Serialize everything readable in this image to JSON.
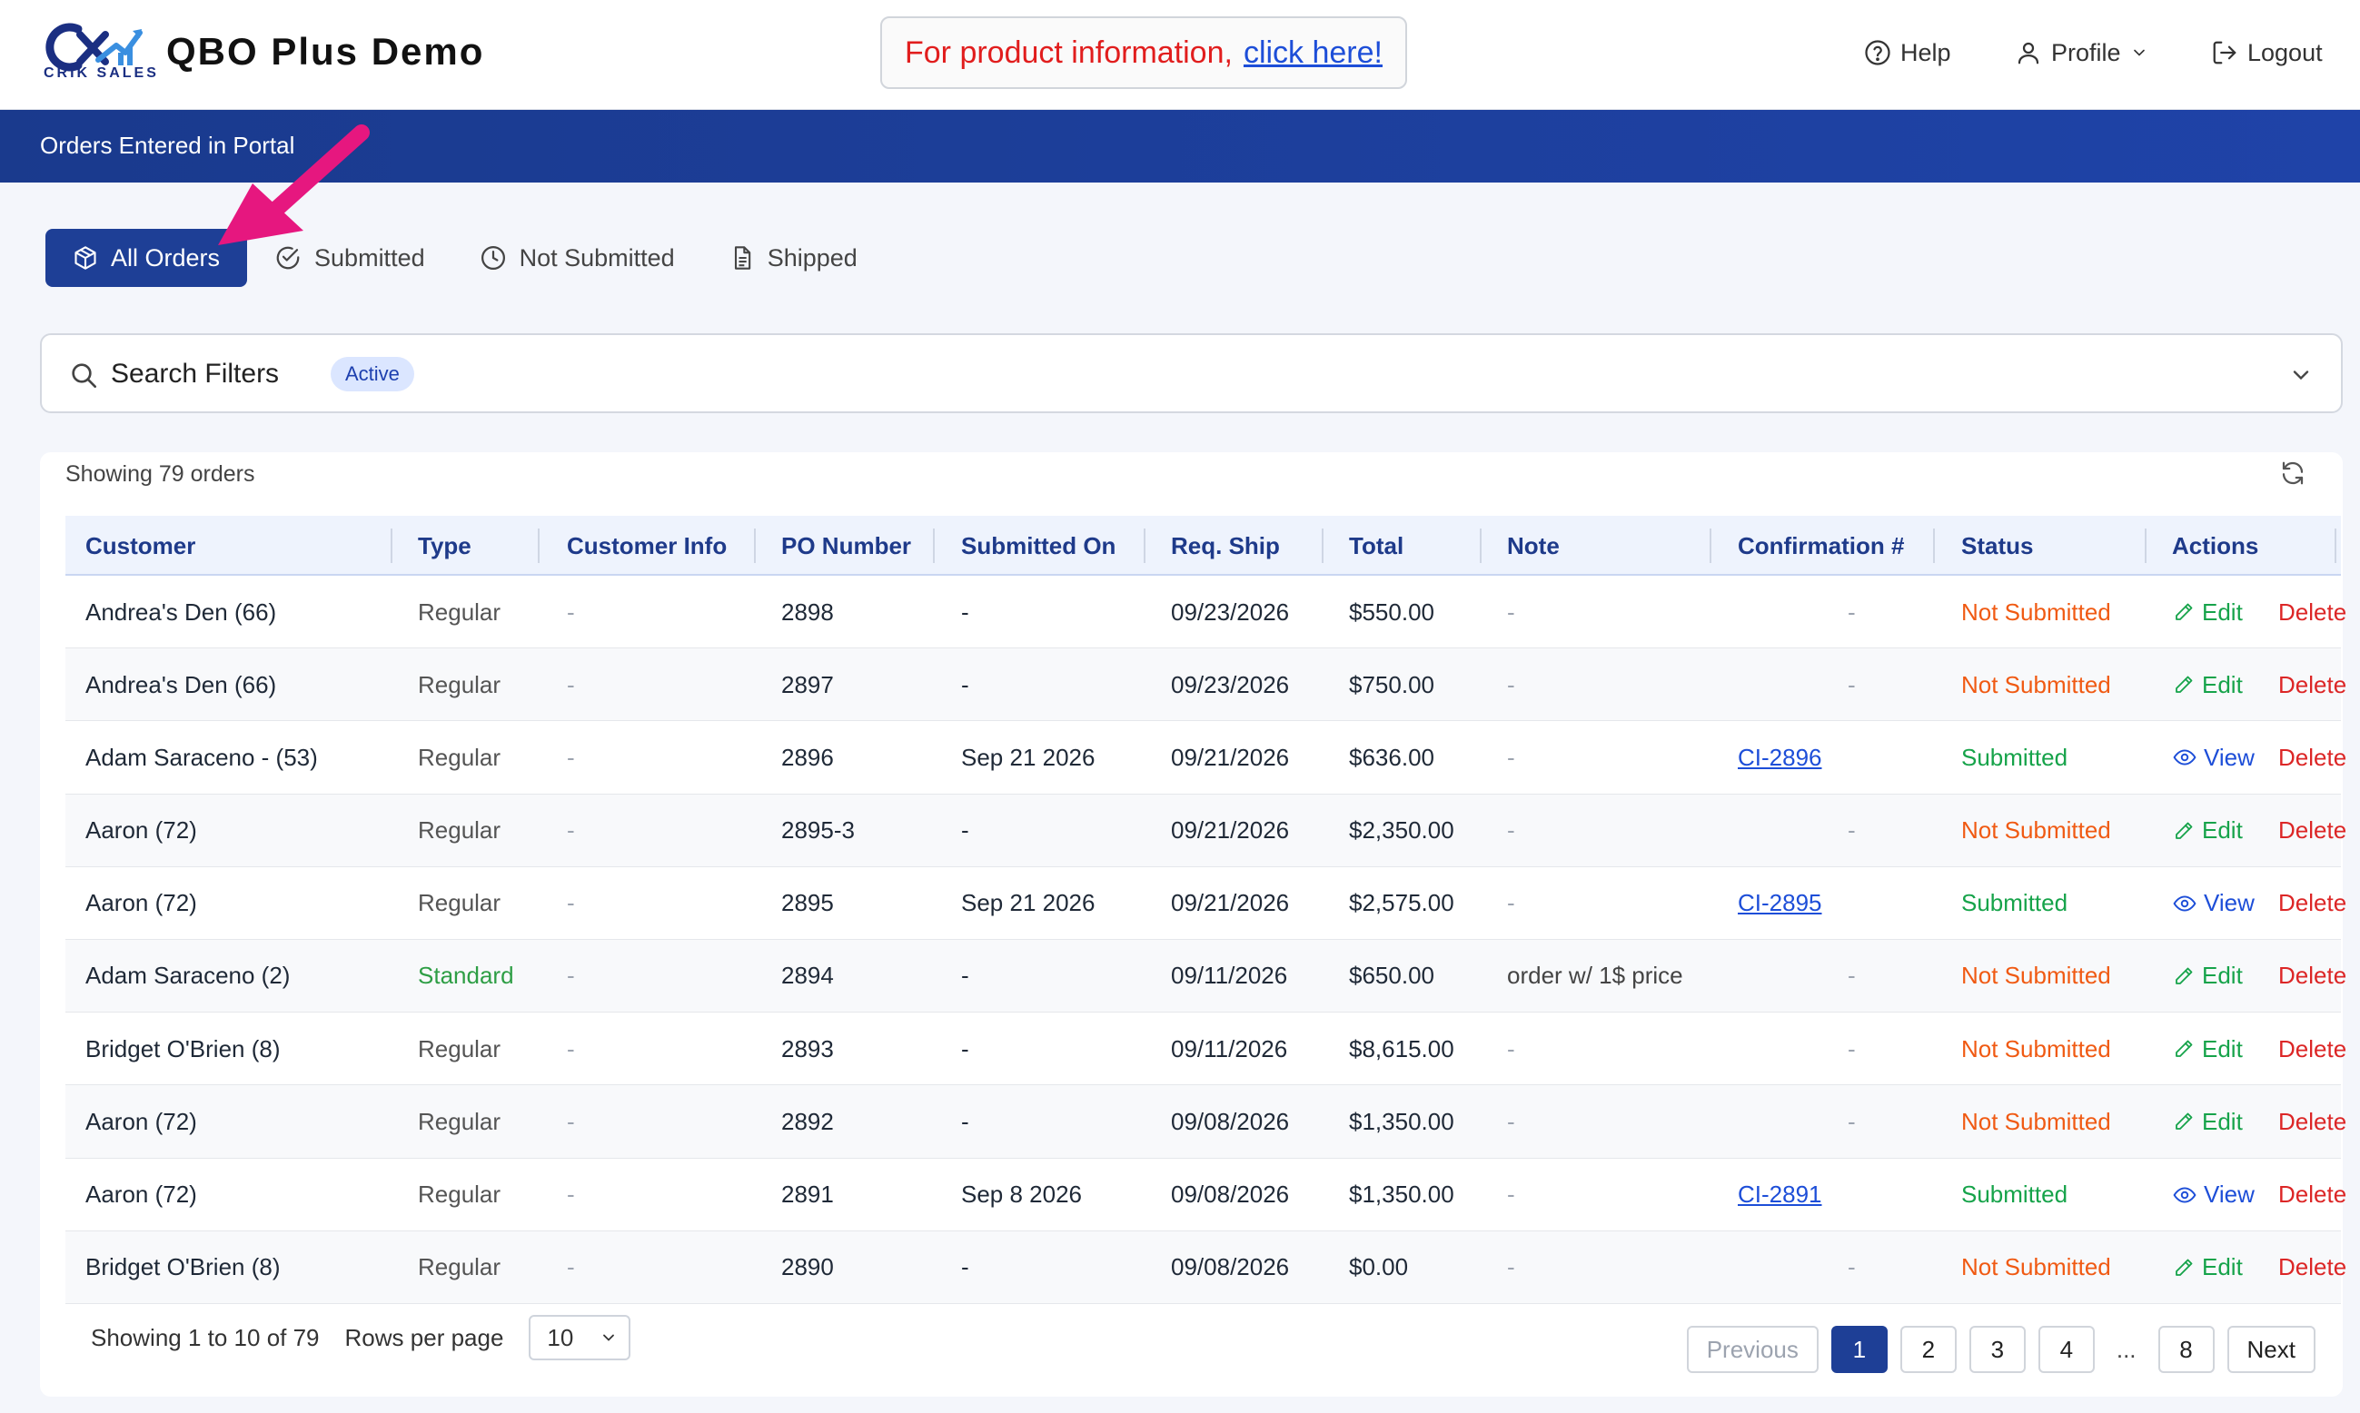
{
  "header": {
    "logo_text": "CRIK SALES",
    "app_title": "QBO Plus Demo",
    "promo_text": "For product information,",
    "promo_link": "click here!",
    "nav": {
      "help": "Help",
      "profile": "Profile",
      "logout": "Logout"
    }
  },
  "banner": {
    "title": "Orders Entered in Portal"
  },
  "tabs": [
    {
      "label": "All Orders",
      "icon": "box-icon",
      "active": true
    },
    {
      "label": "Submitted",
      "icon": "check-circle-icon",
      "active": false
    },
    {
      "label": "Not Submitted",
      "icon": "clock-icon",
      "active": false
    },
    {
      "label": "Shipped",
      "icon": "document-icon",
      "active": false
    }
  ],
  "filters": {
    "title": "Search Filters",
    "badge": "Active"
  },
  "orders": {
    "showing_top": "Showing 79 orders",
    "columns": [
      "Customer",
      "Type",
      "Customer Info",
      "PO Number",
      "Submitted On",
      "Req. Ship",
      "Total",
      "Note",
      "Confirmation #",
      "Status",
      "Actions"
    ],
    "rows": [
      {
        "customer": "Andrea's Den (66)",
        "type": "Regular",
        "info": "-",
        "po": "2898",
        "submitted_on": "-",
        "req_ship": "09/23/2026",
        "total": "$550.00",
        "note": "-",
        "confirmation": "-",
        "status": "Not Submitted",
        "action": "Edit",
        "delete": "Delete"
      },
      {
        "customer": "Andrea's Den (66)",
        "type": "Regular",
        "info": "-",
        "po": "2897",
        "submitted_on": "-",
        "req_ship": "09/23/2026",
        "total": "$750.00",
        "note": "-",
        "confirmation": "-",
        "status": "Not Submitted",
        "action": "Edit",
        "delete": "Delete"
      },
      {
        "customer": "Adam Saraceno - (53)",
        "type": "Regular",
        "info": "-",
        "po": "2896",
        "submitted_on": "Sep 21 2026",
        "req_ship": "09/21/2026",
        "total": "$636.00",
        "note": "-",
        "confirmation": "CI-2896",
        "status": "Submitted",
        "action": "View",
        "delete": "Delete"
      },
      {
        "customer": "Aaron (72)",
        "type": "Regular",
        "info": "-",
        "po": "2895-3",
        "submitted_on": "-",
        "req_ship": "09/21/2026",
        "total": "$2,350.00",
        "note": "-",
        "confirmation": "-",
        "status": "Not Submitted",
        "action": "Edit",
        "delete": "Delete"
      },
      {
        "customer": "Aaron (72)",
        "type": "Regular",
        "info": "-",
        "po": "2895",
        "submitted_on": "Sep 21 2026",
        "req_ship": "09/21/2026",
        "total": "$2,575.00",
        "note": "-",
        "confirmation": "CI-2895",
        "status": "Submitted",
        "action": "View",
        "delete": "Delete"
      },
      {
        "customer": "Adam Saraceno (2)",
        "type": "Standard",
        "info": "-",
        "po": "2894",
        "submitted_on": "-",
        "req_ship": "09/11/2026",
        "total": "$650.00",
        "note": "order w/ 1$ price",
        "confirmation": "-",
        "status": "Not Submitted",
        "action": "Edit",
        "delete": "Delete"
      },
      {
        "customer": "Bridget O'Brien (8)",
        "type": "Regular",
        "info": "-",
        "po": "2893",
        "submitted_on": "-",
        "req_ship": "09/11/2026",
        "total": "$8,615.00",
        "note": "-",
        "confirmation": "-",
        "status": "Not Submitted",
        "action": "Edit",
        "delete": "Delete"
      },
      {
        "customer": "Aaron (72)",
        "type": "Regular",
        "info": "-",
        "po": "2892",
        "submitted_on": "-",
        "req_ship": "09/08/2026",
        "total": "$1,350.00",
        "note": "-",
        "confirmation": "-",
        "status": "Not Submitted",
        "action": "Edit",
        "delete": "Delete"
      },
      {
        "customer": "Aaron (72)",
        "type": "Regular",
        "info": "-",
        "po": "2891",
        "submitted_on": "Sep 8 2026",
        "req_ship": "09/08/2026",
        "total": "$1,350.00",
        "note": "-",
        "confirmation": "CI-2891",
        "status": "Submitted",
        "action": "View",
        "delete": "Delete"
      },
      {
        "customer": "Bridget O'Brien (8)",
        "type": "Regular",
        "info": "-",
        "po": "2890",
        "submitted_on": "-",
        "req_ship": "09/08/2026",
        "total": "$0.00",
        "note": "-",
        "confirmation": "-",
        "status": "Not Submitted",
        "action": "Edit",
        "delete": "Delete"
      }
    ]
  },
  "pagination": {
    "showing": "Showing 1 to 10 of 79",
    "rows_per_page_label": "Rows per page",
    "rows_per_page_value": "10",
    "previous": "Previous",
    "pages": [
      "1",
      "2",
      "3",
      "4"
    ],
    "ellipsis": "...",
    "last_page": "8",
    "next": "Next",
    "current_page": "1"
  },
  "colors": {
    "primary": "#1e3f96",
    "banner": "#1f43a8",
    "not_submitted": "#f05a13",
    "submitted": "#16a34a",
    "delete": "#dc2626",
    "link": "#1d4ed8",
    "annotation_arrow": "#e6177f"
  }
}
